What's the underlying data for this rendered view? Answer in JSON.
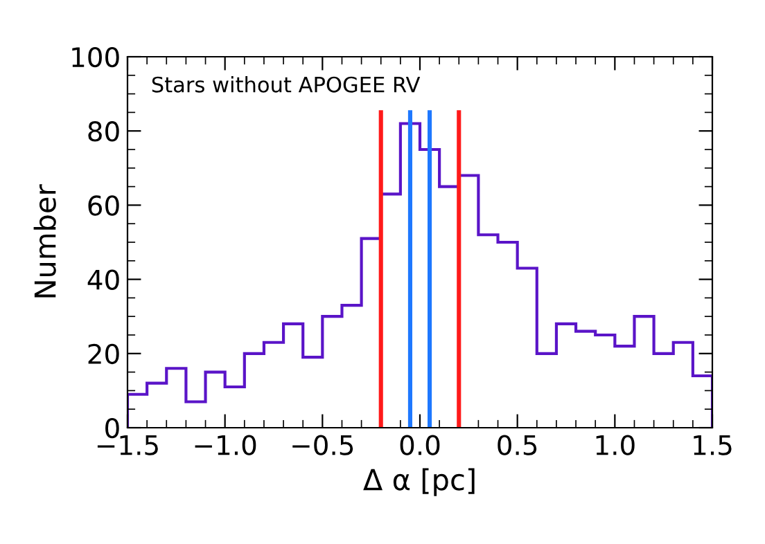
{
  "chart_data": {
    "type": "histogram",
    "xlabel": "Δ α [pc]",
    "ylabel": "Number",
    "annotations": [
      "Stars without APOGEE RV"
    ],
    "bins": [
      -1.5,
      -1.4,
      -1.3,
      -1.2,
      -1.1,
      -1.0,
      -0.9,
      -0.8,
      -0.7,
      -0.6,
      -0.5,
      -0.4,
      -0.3,
      -0.2,
      -0.1,
      0.0,
      0.1,
      0.2,
      0.3,
      0.4,
      0.5,
      0.6,
      0.7,
      0.8,
      0.9,
      1.0,
      1.1,
      1.2,
      1.3,
      1.4,
      1.5
    ],
    "values": [
      9,
      12,
      16,
      7,
      15,
      11,
      20,
      23,
      28,
      19,
      30,
      33,
      51,
      63,
      82,
      75,
      65,
      68,
      52,
      50,
      43,
      20,
      28,
      26,
      25,
      22,
      30,
      20,
      23,
      14
    ],
    "color": "#5a14c8",
    "xlim": [
      -1.5,
      1.5
    ],
    "ylim": [
      0,
      100
    ],
    "xticks": [
      {
        "value": -1.5,
        "label": "−1.5"
      },
      {
        "value": -1.0,
        "label": "−1.0"
      },
      {
        "value": -0.5,
        "label": "−0.5"
      },
      {
        "value": 0.0,
        "label": "0.0"
      },
      {
        "value": 0.5,
        "label": "0.5"
      },
      {
        "value": 1.0,
        "label": "1.0"
      },
      {
        "value": 1.5,
        "label": "1.5"
      }
    ],
    "yticks": [
      0,
      20,
      40,
      60,
      80,
      100
    ],
    "ref_lines": [
      {
        "axis": "x",
        "value": -0.2,
        "label": null,
        "color": "#ff1a1a"
      },
      {
        "axis": "x",
        "value": 0.2,
        "label": null,
        "color": "#ff1a1a"
      },
      {
        "axis": "x",
        "value": -0.05,
        "label": null,
        "color": "#1e78ff"
      },
      {
        "axis": "x",
        "value": 0.05,
        "label": null,
        "color": "#1e78ff"
      }
    ],
    "grid": false,
    "legend": false
  }
}
